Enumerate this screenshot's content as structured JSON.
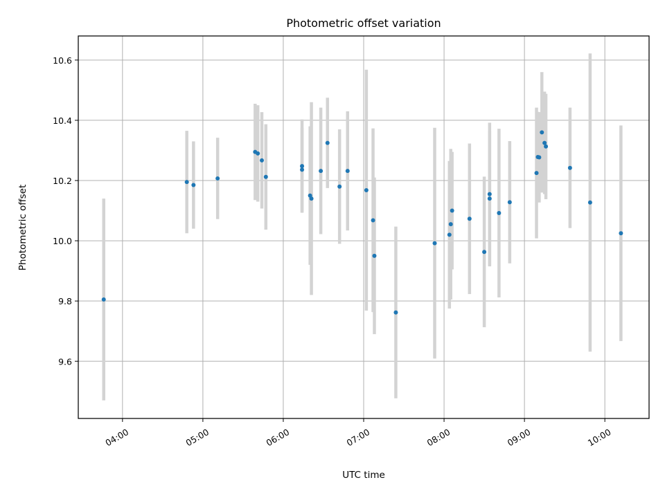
{
  "chart_data": {
    "type": "scatter",
    "title": "Photometric offset variation",
    "xlabel": "UTC time",
    "ylabel": "Photometric offset",
    "xlim": [
      "03:27",
      "10:33"
    ],
    "ylim": [
      9.41,
      10.68
    ],
    "x_ticks": [
      "04:00",
      "05:00",
      "06:00",
      "07:00",
      "08:00",
      "09:00",
      "10:00"
    ],
    "y_ticks": [
      9.6,
      9.8,
      10.0,
      10.2,
      10.4,
      10.6
    ],
    "grid": true,
    "errorbar_color": "#d3d3d3",
    "point_color": "#1f77b4",
    "series": [
      {
        "points": [
          {
            "x": "03:46",
            "y": 9.805,
            "yerr": 0.335
          },
          {
            "x": "04:48",
            "y": 10.195,
            "yerr": 0.17
          },
          {
            "x": "04:53",
            "y": 10.185,
            "yerr": 0.145
          },
          {
            "x": "05:11",
            "y": 10.207,
            "yerr": 0.135
          },
          {
            "x": "05:39",
            "y": 10.295,
            "yerr": 0.16
          },
          {
            "x": "05:41",
            "y": 10.29,
            "yerr": 0.16
          },
          {
            "x": "05:44",
            "y": 10.267,
            "yerr": 0.16
          },
          {
            "x": "05:47",
            "y": 10.212,
            "yerr": 0.175
          },
          {
            "x": "06:14",
            "y": 10.248,
            "yerr": 0.155
          },
          {
            "x": "06:14",
            "y": 10.236,
            "yerr": 0.14
          },
          {
            "x": "06:20",
            "y": 10.15,
            "yerr": 0.23
          },
          {
            "x": "06:21",
            "y": 10.14,
            "yerr": 0.32
          },
          {
            "x": "06:28",
            "y": 10.232,
            "yerr": 0.21
          },
          {
            "x": "06:33",
            "y": 10.325,
            "yerr": 0.15
          },
          {
            "x": "06:42",
            "y": 10.18,
            "yerr": 0.19
          },
          {
            "x": "06:48",
            "y": 10.232,
            "yerr": 0.198
          },
          {
            "x": "07:02",
            "y": 10.168,
            "yerr": 0.4
          },
          {
            "x": "07:07",
            "y": 10.068,
            "yerr": 0.305
          },
          {
            "x": "07:08",
            "y": 9.95,
            "yerr": 0.26
          },
          {
            "x": "07:24",
            "y": 9.762,
            "yerr": 0.285
          },
          {
            "x": "07:53",
            "y": 9.992,
            "yerr": 0.383
          },
          {
            "x": "08:04",
            "y": 10.02,
            "yerr": 0.245
          },
          {
            "x": "08:05",
            "y": 10.055,
            "yerr": 0.25
          },
          {
            "x": "08:06",
            "y": 10.1,
            "yerr": 0.195
          },
          {
            "x": "08:19",
            "y": 10.073,
            "yerr": 0.25
          },
          {
            "x": "08:30",
            "y": 9.963,
            "yerr": 0.25
          },
          {
            "x": "08:34",
            "y": 10.14,
            "yerr": 0.225
          },
          {
            "x": "08:34",
            "y": 10.155,
            "yerr": 0.237
          },
          {
            "x": "08:41",
            "y": 10.092,
            "yerr": 0.28
          },
          {
            "x": "08:49",
            "y": 10.128,
            "yerr": 0.203
          },
          {
            "x": "09:09",
            "y": 10.225,
            "yerr": 0.217
          },
          {
            "x": "09:10",
            "y": 10.278,
            "yerr": 0.15
          },
          {
            "x": "09:11",
            "y": 10.277,
            "yerr": 0.15
          },
          {
            "x": "09:13",
            "y": 10.36,
            "yerr": 0.2
          },
          {
            "x": "09:15",
            "y": 10.325,
            "yerr": 0.17
          },
          {
            "x": "09:16",
            "y": 10.313,
            "yerr": 0.175
          },
          {
            "x": "09:34",
            "y": 10.242,
            "yerr": 0.2
          },
          {
            "x": "09:49",
            "y": 10.127,
            "yerr": 0.495
          },
          {
            "x": "10:12",
            "y": 10.025,
            "yerr": 0.358
          }
        ]
      }
    ]
  }
}
